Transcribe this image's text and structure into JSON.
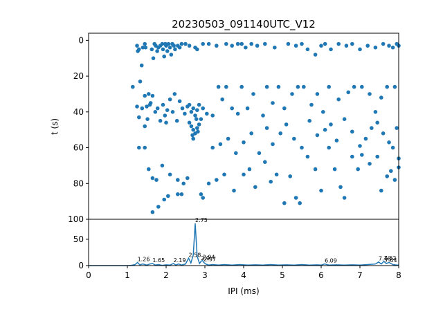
{
  "chart_data": [
    {
      "type": "scatter",
      "title": "20230503_091140UTC_V12",
      "xlabel": "",
      "ylabel": "t (s)",
      "xlim": [
        0,
        8
      ],
      "ylim": [
        100,
        -4
      ],
      "y_inverted": true,
      "yticks": [
        "0",
        "20",
        "40",
        "60",
        "80",
        "100"
      ],
      "marker_color": "#1f77b4",
      "points": [
        [
          1.14,
          26
        ],
        [
          1.25,
          3
        ],
        [
          1.27,
          6
        ],
        [
          1.3,
          5
        ],
        [
          1.33,
          23
        ],
        [
          1.37,
          14
        ],
        [
          1.4,
          4
        ],
        [
          1.45,
          2
        ],
        [
          1.47,
          4
        ],
        [
          1.5,
          37
        ],
        [
          1.55,
          30
        ],
        [
          1.6,
          35
        ],
        [
          1.63,
          5
        ],
        [
          1.67,
          10
        ],
        [
          1.7,
          2
        ],
        [
          1.73,
          3
        ],
        [
          1.77,
          6
        ],
        [
          1.8,
          4
        ],
        [
          1.85,
          3
        ],
        [
          1.9,
          2
        ],
        [
          1.92,
          5
        ],
        [
          1.95,
          9
        ],
        [
          1.98,
          2
        ],
        [
          2.0,
          3
        ],
        [
          2.03,
          6
        ],
        [
          2.06,
          2
        ],
        [
          2.1,
          4
        ],
        [
          2.13,
          8
        ],
        [
          2.16,
          2
        ],
        [
          2.2,
          3
        ],
        [
          2.23,
          5
        ],
        [
          2.3,
          3
        ],
        [
          2.35,
          4
        ],
        [
          2.4,
          2
        ],
        [
          2.5,
          2
        ],
        [
          2.6,
          3
        ],
        [
          2.75,
          4
        ],
        [
          2.8,
          5
        ],
        [
          2.95,
          2
        ],
        [
          3.1,
          2
        ],
        [
          3.3,
          3
        ],
        [
          3.55,
          2
        ],
        [
          3.7,
          3
        ],
        [
          3.85,
          2
        ],
        [
          3.95,
          2
        ],
        [
          4.05,
          4
        ],
        [
          4.2,
          2
        ],
        [
          4.35,
          3
        ],
        [
          4.55,
          2
        ],
        [
          4.8,
          4
        ],
        [
          5.15,
          2
        ],
        [
          5.35,
          3
        ],
        [
          5.5,
          2
        ],
        [
          5.65,
          5
        ],
        [
          5.85,
          8
        ],
        [
          6.0,
          3
        ],
        [
          6.1,
          2
        ],
        [
          6.25,
          5
        ],
        [
          6.45,
          2
        ],
        [
          6.65,
          3
        ],
        [
          6.8,
          2
        ],
        [
          7.0,
          5
        ],
        [
          7.2,
          3
        ],
        [
          7.4,
          4
        ],
        [
          7.6,
          2
        ],
        [
          7.75,
          3
        ],
        [
          7.85,
          4
        ],
        [
          7.95,
          2
        ],
        [
          8.0,
          3
        ],
        [
          1.25,
          37
        ],
        [
          1.3,
          43
        ],
        [
          1.38,
          38
        ],
        [
          1.45,
          31
        ],
        [
          1.52,
          44
        ],
        [
          1.58,
          36
        ],
        [
          1.65,
          31
        ],
        [
          1.72,
          40
        ],
        [
          1.78,
          38
        ],
        [
          1.85,
          45
        ],
        [
          1.92,
          36
        ],
        [
          1.97,
          42
        ],
        [
          2.03,
          39
        ],
        [
          2.1,
          33
        ],
        [
          2.17,
          40
        ],
        [
          2.22,
          30
        ],
        [
          2.28,
          45
        ],
        [
          2.35,
          34
        ],
        [
          2.42,
          38
        ],
        [
          2.48,
          41
        ],
        [
          2.55,
          37
        ],
        [
          2.6,
          36
        ],
        [
          2.65,
          40
        ],
        [
          2.7,
          38
        ],
        [
          2.75,
          42
        ],
        [
          2.8,
          39
        ],
        [
          2.85,
          36
        ],
        [
          2.9,
          44
        ],
        [
          2.95,
          38
        ],
        [
          3.05,
          41
        ],
        [
          3.2,
          42
        ],
        [
          3.35,
          26
        ],
        [
          3.45,
          33
        ],
        [
          3.55,
          26
        ],
        [
          3.7,
          38
        ],
        [
          3.85,
          41
        ],
        [
          3.95,
          26
        ],
        [
          4.1,
          38
        ],
        [
          4.25,
          30
        ],
        [
          4.5,
          42
        ],
        [
          4.6,
          26
        ],
        [
          4.75,
          35
        ],
        [
          4.9,
          26
        ],
        [
          5.05,
          38
        ],
        [
          5.25,
          30
        ],
        [
          5.4,
          26
        ],
        [
          5.55,
          26
        ],
        [
          5.75,
          36
        ],
        [
          5.9,
          30
        ],
        [
          6.05,
          40
        ],
        [
          6.2,
          26
        ],
        [
          6.45,
          33
        ],
        [
          6.7,
          29
        ],
        [
          6.85,
          26
        ],
        [
          7.05,
          26
        ],
        [
          7.25,
          30
        ],
        [
          7.4,
          40
        ],
        [
          7.55,
          32
        ],
        [
          7.7,
          26
        ],
        [
          7.9,
          26
        ],
        [
          2.6,
          46
        ],
        [
          2.65,
          48
        ],
        [
          2.7,
          50
        ],
        [
          2.75,
          52
        ],
        [
          2.8,
          49
        ],
        [
          2.85,
          47
        ],
        [
          2.7,
          55
        ],
        [
          2.78,
          44
        ],
        [
          2.68,
          53
        ],
        [
          2.82,
          51
        ],
        [
          1.3,
          60
        ],
        [
          1.45,
          60
        ],
        [
          1.55,
          72
        ],
        [
          1.65,
          77
        ],
        [
          1.75,
          78
        ],
        [
          1.9,
          70
        ],
        [
          2.1,
          75
        ],
        [
          2.3,
          78
        ],
        [
          2.45,
          80
        ],
        [
          2.55,
          77
        ],
        [
          1.65,
          96
        ],
        [
          1.8,
          93
        ],
        [
          1.95,
          89
        ],
        [
          2.05,
          87
        ],
        [
          2.3,
          86
        ],
        [
          2.4,
          86
        ],
        [
          2.9,
          86
        ],
        [
          2.95,
          88
        ],
        [
          3.1,
          80
        ],
        [
          3.3,
          78
        ],
        [
          3.5,
          75
        ],
        [
          3.75,
          84
        ],
        [
          4.0,
          75
        ],
        [
          4.15,
          72
        ],
        [
          4.3,
          82
        ],
        [
          4.55,
          68
        ],
        [
          4.7,
          79
        ],
        [
          4.85,
          75
        ],
        [
          5.05,
          91
        ],
        [
          5.2,
          76
        ],
        [
          5.35,
          88
        ],
        [
          5.45,
          91
        ],
        [
          5.65,
          65
        ],
        [
          5.85,
          72
        ],
        [
          6.0,
          84
        ],
        [
          6.2,
          60
        ],
        [
          6.35,
          72
        ],
        [
          6.5,
          82
        ],
        [
          6.6,
          88
        ],
        [
          6.8,
          65
        ],
        [
          6.95,
          72
        ],
        [
          7.05,
          64
        ],
        [
          7.25,
          69
        ],
        [
          7.45,
          65
        ],
        [
          7.55,
          84
        ],
        [
          7.7,
          76
        ],
        [
          7.8,
          73
        ],
        [
          7.9,
          78
        ],
        [
          8.0,
          66
        ],
        [
          8.0,
          71
        ],
        [
          3.2,
          60
        ],
        [
          3.4,
          58
        ],
        [
          3.6,
          55
        ],
        [
          3.8,
          63
        ],
        [
          4.0,
          57
        ],
        [
          4.2,
          52
        ],
        [
          4.4,
          63
        ],
        [
          4.6,
          49
        ],
        [
          4.75,
          58
        ],
        [
          4.95,
          52
        ],
        [
          5.1,
          47
        ],
        [
          5.3,
          55
        ],
        [
          5.5,
          60
        ],
        [
          5.7,
          45
        ],
        [
          5.9,
          53
        ],
        [
          6.1,
          50
        ],
        [
          6.25,
          47
        ],
        [
          6.4,
          56
        ],
        [
          6.6,
          44
        ],
        [
          6.8,
          51
        ],
        [
          7.0,
          59
        ],
        [
          7.15,
          55
        ],
        [
          7.3,
          49
        ],
        [
          7.45,
          46
        ],
        [
          7.6,
          52
        ],
        [
          7.75,
          57
        ],
        [
          7.85,
          60
        ],
        [
          7.95,
          49
        ],
        [
          1.45,
          48
        ],
        [
          2.0,
          46
        ]
      ]
    },
    {
      "type": "line",
      "xlabel": "IPI (ms)",
      "ylabel": "",
      "xlim": [
        0,
        8
      ],
      "ylim": [
        0,
        88
      ],
      "xticks": [
        "0",
        "1",
        "2",
        "3",
        "4",
        "5",
        "6",
        "7",
        "8"
      ],
      "yticks": [
        "0",
        "50"
      ],
      "line_color": "#1f77b4",
      "curve": [
        [
          0,
          0
        ],
        [
          1.0,
          0
        ],
        [
          1.1,
          0.5
        ],
        [
          1.2,
          2
        ],
        [
          1.26,
          6
        ],
        [
          1.32,
          1.5
        ],
        [
          1.4,
          3
        ],
        [
          1.5,
          1
        ],
        [
          1.58,
          3
        ],
        [
          1.65,
          4
        ],
        [
          1.72,
          1
        ],
        [
          1.8,
          2
        ],
        [
          1.9,
          0.5
        ],
        [
          2.0,
          1.5
        ],
        [
          2.1,
          1
        ],
        [
          2.19,
          4
        ],
        [
          2.25,
          1
        ],
        [
          2.32,
          3
        ],
        [
          2.4,
          1
        ],
        [
          2.5,
          3
        ],
        [
          2.58,
          14
        ],
        [
          2.64,
          5
        ],
        [
          2.7,
          20
        ],
        [
          2.75,
          80
        ],
        [
          2.8,
          18
        ],
        [
          2.86,
          4
        ],
        [
          2.9,
          8
        ],
        [
          2.94,
          10
        ],
        [
          2.97,
          6
        ],
        [
          3.02,
          3
        ],
        [
          3.1,
          1
        ],
        [
          3.2,
          2
        ],
        [
          3.35,
          1
        ],
        [
          3.5,
          2
        ],
        [
          3.7,
          1
        ],
        [
          3.9,
          2
        ],
        [
          4.1,
          1
        ],
        [
          4.3,
          1.5
        ],
        [
          4.5,
          1
        ],
        [
          4.7,
          2
        ],
        [
          4.9,
          1
        ],
        [
          5.1,
          1.5
        ],
        [
          5.3,
          1
        ],
        [
          5.5,
          2
        ],
        [
          5.7,
          1
        ],
        [
          5.9,
          1.5
        ],
        [
          6.0,
          1
        ],
        [
          6.09,
          3
        ],
        [
          6.2,
          1
        ],
        [
          6.4,
          1.5
        ],
        [
          6.6,
          1
        ],
        [
          6.8,
          1.5
        ],
        [
          7.0,
          1
        ],
        [
          7.2,
          2
        ],
        [
          7.4,
          3
        ],
        [
          7.48,
          7
        ],
        [
          7.55,
          3
        ],
        [
          7.62,
          8
        ],
        [
          7.68,
          4
        ],
        [
          7.75,
          6
        ],
        [
          7.85,
          2
        ],
        [
          7.95,
          1
        ],
        [
          8.0,
          1
        ]
      ],
      "peak_labels": [
        {
          "x": 1.26,
          "y": 6,
          "text": "1.26"
        },
        {
          "x": 1.65,
          "y": 4,
          "text": "1.65"
        },
        {
          "x": 2.19,
          "y": 4,
          "text": "2.19"
        },
        {
          "x": 2.58,
          "y": 14,
          "text": "2.58"
        },
        {
          "x": 2.75,
          "y": 80,
          "text": "2.75"
        },
        {
          "x": 2.9,
          "y": 8,
          "text": "2.9"
        },
        {
          "x": 2.94,
          "y": 10,
          "text": "2.94"
        },
        {
          "x": 2.97,
          "y": 6,
          "text": "2.97"
        },
        {
          "x": 6.09,
          "y": 3,
          "text": "6.09"
        },
        {
          "x": 7.48,
          "y": 7,
          "text": "7.48"
        },
        {
          "x": 7.62,
          "y": 8,
          "text": "7.62"
        },
        {
          "x": 7.64,
          "y": 4,
          "text": "7.64"
        }
      ]
    }
  ]
}
